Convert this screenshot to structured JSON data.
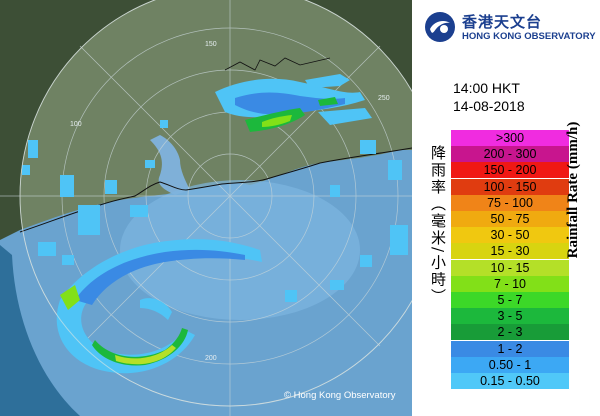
{
  "header": {
    "org_name_zh": "香港天文台",
    "org_name_en": "HONG KONG OBSERVATORY",
    "time": "14:00 HKT",
    "date": "14-08-2018"
  },
  "legend": {
    "title_zh": "降雨率（毫米/小時）",
    "title_en": "Rainfall Rate (mm/h)",
    "levels": [
      {
        "label": ">300",
        "color": "#f02ce0"
      },
      {
        "label": "200 - 300",
        "color": "#c8158e"
      },
      {
        "label": "150 - 200",
        "color": "#f01814"
      },
      {
        "label": "100 - 150",
        "color": "#e03c10"
      },
      {
        "label": "75 - 100",
        "color": "#f08418"
      },
      {
        "label": "50 - 75",
        "color": "#f0aa10"
      },
      {
        "label": "30 - 50",
        "color": "#f0c810"
      },
      {
        "label": "15 - 30",
        "color": "#d8d410"
      },
      {
        "label": "10 - 15",
        "color": "#b4e028"
      },
      {
        "label": "7 - 10",
        "color": "#82e018"
      },
      {
        "label": "5 - 7",
        "color": "#3cd828"
      },
      {
        "label": "3 - 5",
        "color": "#1cb83c"
      },
      {
        "label": "2 - 3",
        "color": "#189c38"
      },
      {
        "label": "1 - 2",
        "color": "#3a8ae4"
      },
      {
        "label": "0.50 - 1",
        "color": "#3ca8f4"
      },
      {
        "label": "0.15 - 0.50",
        "color": "#50c8f8"
      }
    ]
  },
  "map": {
    "range_ring_labels": [
      "50",
      "100",
      "150",
      "200",
      "250"
    ],
    "copyright": "© Hong Kong Observatory"
  }
}
